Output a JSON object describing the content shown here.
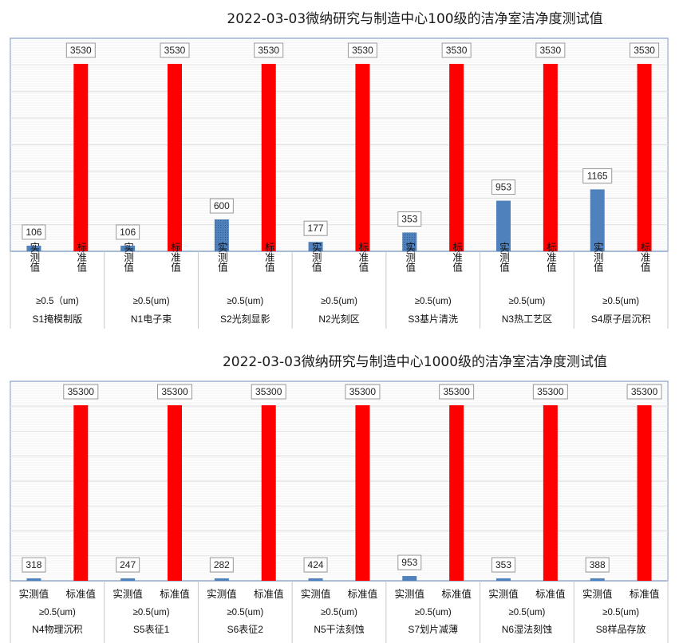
{
  "chart_data": [
    {
      "type": "bar",
      "title": "2022-03-03微纳研究与制造中心100级的洁净室洁净度测试值",
      "categories": [
        "S1掩模制版",
        "N1电子束",
        "S2光刻显影",
        "N2光刻区",
        "S3基片清洗",
        "N3热工艺区",
        "S4原子层沉积"
      ],
      "particle_labels": [
        "≥0.5（um)",
        "≥0.5(um)",
        "≥0.5(um)",
        "≥0.5(um)",
        "≥0.5(um)",
        "≥0.5(um)",
        "≥0.5(um)"
      ],
      "series": [
        {
          "name": "实测值",
          "values": [
            106,
            106,
            600,
            177,
            353,
            953,
            1165
          ],
          "color": "#4f81bd"
        },
        {
          "name": "标准值",
          "values": [
            3530,
            3530,
            3530,
            3530,
            3530,
            3530,
            3530
          ],
          "color": "#ff0000"
        }
      ],
      "ylim": [
        0,
        3530
      ],
      "grid": true,
      "xlabel": "",
      "ylabel": ""
    },
    {
      "type": "bar",
      "title": "2022-03-03微纳研究与制造中心1000级的洁净室洁净度测试值",
      "categories": [
        "N4物理沉积",
        "S5表征1",
        "S6表征2",
        "N5干法刻蚀",
        "S7划片减薄",
        "N6湿法刻蚀",
        "S8样品存放"
      ],
      "particle_labels": [
        "≥0.5(um)",
        "≥0.5(um)",
        "≥0.5(um)",
        "≥0.5(um)",
        "≥0.5(um)",
        "≥0.5(um)",
        "≥0.5(um)"
      ],
      "series": [
        {
          "name": "实测值",
          "values": [
            318,
            247,
            282,
            424,
            953,
            353,
            388
          ],
          "color": "#4f81bd"
        },
        {
          "name": "标准值",
          "values": [
            35300,
            35300,
            35300,
            35300,
            35300,
            35300,
            35300
          ],
          "color": "#ff0000"
        }
      ],
      "ylim": [
        0,
        35300
      ],
      "grid": true,
      "xlabel": "",
      "ylabel": ""
    }
  ]
}
